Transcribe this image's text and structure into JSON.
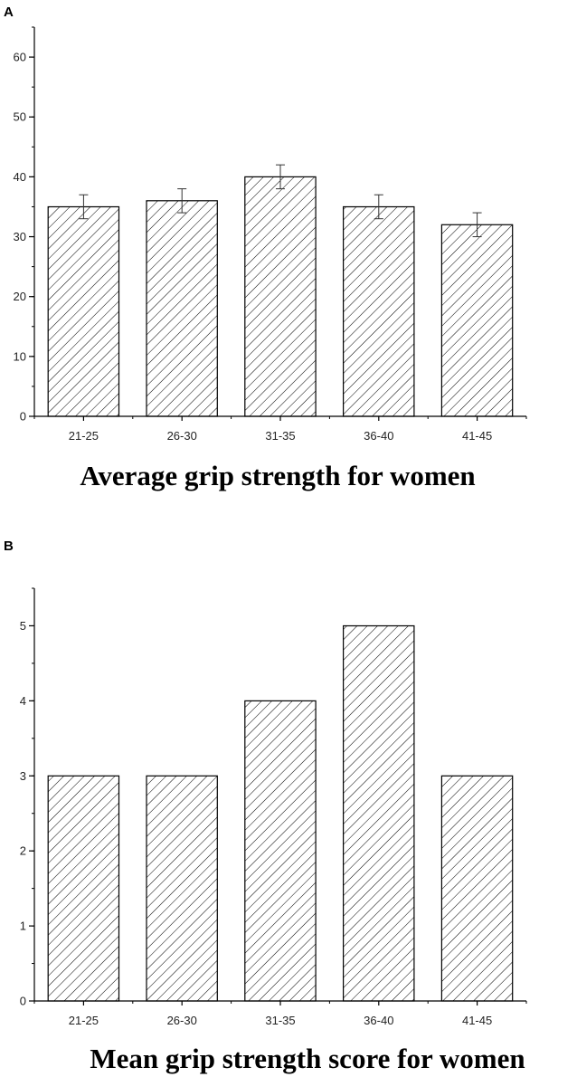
{
  "chart_data": [
    {
      "panel_label": "A",
      "type": "bar",
      "title": "",
      "xlabel": "Average grip strength for women",
      "ylabel": "",
      "categories": [
        "21-25",
        "26-30",
        "31-35",
        "36-40",
        "41-45"
      ],
      "values": [
        35,
        36,
        40,
        35,
        32
      ],
      "error": [
        2,
        2,
        2,
        2,
        2
      ],
      "ylim": [
        0,
        65
      ],
      "yticks": [
        0,
        10,
        20,
        30,
        40,
        50,
        60
      ],
      "ytick_labels": [
        "0",
        "10",
        "20",
        "30",
        "40",
        "50",
        "60"
      ],
      "bar_fill": "hatched",
      "grid": false
    },
    {
      "panel_label": "B",
      "type": "bar",
      "title": "",
      "xlabel": "Mean grip strength score for women",
      "ylabel": "",
      "categories": [
        "21-25",
        "26-30",
        "31-35",
        "36-40",
        "41-45"
      ],
      "values": [
        3,
        3,
        4,
        5,
        3
      ],
      "ylim": [
        0,
        5.5
      ],
      "yticks": [
        0,
        1,
        2,
        3,
        4,
        5
      ],
      "ytick_labels": [
        "0",
        "1",
        "2",
        "3",
        "4",
        "5"
      ],
      "bar_fill": "hatched",
      "grid": false
    }
  ],
  "colors": {
    "axis": "#000000",
    "bar_stroke": "#000000",
    "hatch": "#000000",
    "error_bar": "#333333"
  }
}
